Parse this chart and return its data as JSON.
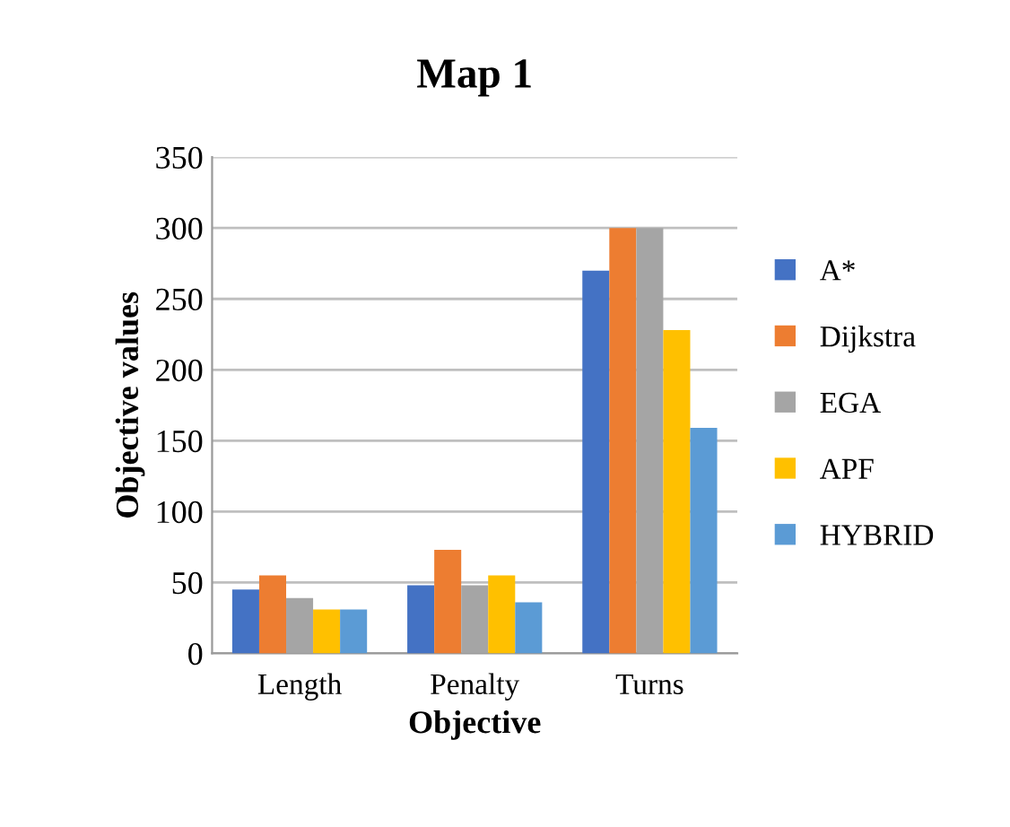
{
  "chart_data": {
    "type": "bar",
    "title": "Map 1",
    "xlabel": "Objective",
    "ylabel": "Objective values",
    "categories": [
      "Length",
      "Penalty",
      "Turns"
    ],
    "series": [
      {
        "name": "A*",
        "color": "#4472c4",
        "values": [
          45,
          48,
          270
        ]
      },
      {
        "name": "Dijkstra",
        "color": "#ed7d31",
        "values": [
          55,
          73,
          300
        ]
      },
      {
        "name": "EGA",
        "color": "#a5a5a5",
        "values": [
          39,
          48,
          300
        ]
      },
      {
        "name": "APF",
        "color": "#ffc000",
        "values": [
          31,
          55,
          228
        ]
      },
      {
        "name": "HYBRID",
        "color": "#5b9bd5",
        "values": [
          31,
          36,
          159
        ]
      }
    ],
    "ylim": [
      0,
      350
    ],
    "yticks": [
      0,
      50,
      100,
      150,
      200,
      250,
      300,
      350
    ],
    "grid": "y",
    "legend": "right"
  }
}
